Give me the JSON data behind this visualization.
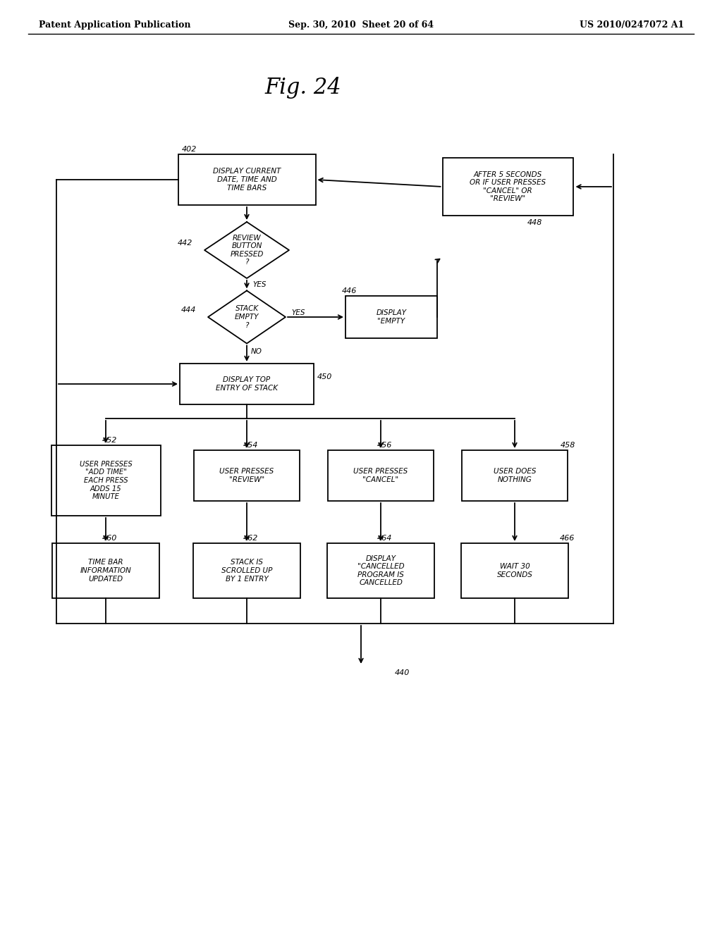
{
  "header_left": "Patent Application Publication",
  "header_mid": "Sep. 30, 2010  Sheet 20 of 64",
  "header_right": "US 2010/0247072 A1",
  "bg_color": "#ffffff",
  "fig_title": "Fig. 24",
  "node_402": "DISPLAY CURRENT\nDATE, TIME AND\nTIME BARS",
  "node_442": "REVIEW\nBUTTON\nPRESSED\n?",
  "node_444": "STACK\nEMPTY\n?",
  "node_446": "DISPLAY\n\"EMPTY",
  "node_448": "AFTER 5 SECONDS\nOR IF USER PRESSES\n\"CANCEL\" OR\n\"REVIEW\"",
  "node_450": "DISPLAY TOP\nENTRY OF STACK",
  "node_452": "USER PRESSES\n\"ADD TIME\"\nEACH PRESS\nADDS 15\nMINUTE",
  "node_454": "USER PRESSES\n\"REVIEW\"",
  "node_456": "USER PRESSES\n\"CANCEL\"",
  "node_458": "USER DOES\nNOTHING",
  "node_460": "TIME BAR\nINFORMATION\nUPDATED",
  "node_462": "STACK IS\nSCROLLED UP\nBY 1 ENTRY",
  "node_464": "DISPLAY\n\"CANCELLED\nPROGRAM IS\nCANCELLED",
  "node_466": "WAIT 30\nSECONDS"
}
